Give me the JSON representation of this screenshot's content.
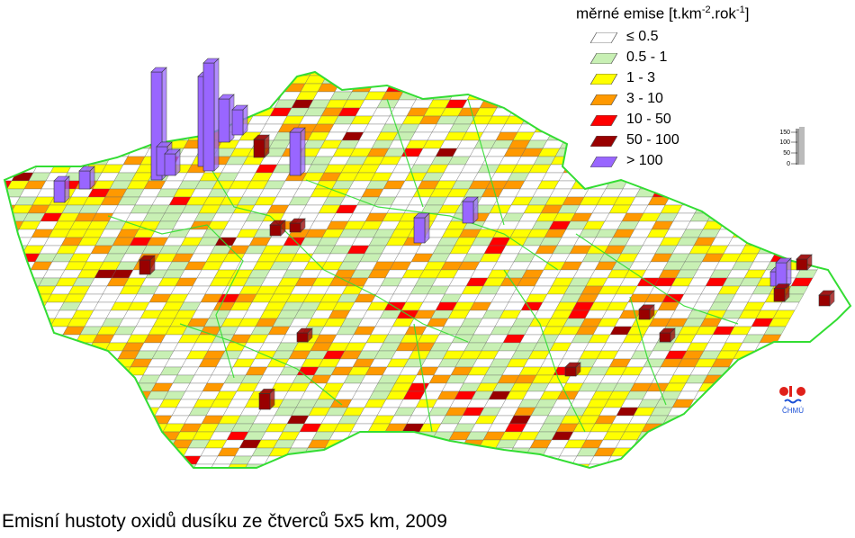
{
  "legend": {
    "title": "měrné emise [t.km",
    "title_exp1": "-2",
    "title_mid": ".rok",
    "title_exp2": "-1",
    "title_end": "]",
    "items": [
      {
        "label": "≤ 0.5",
        "color": "#ffffff"
      },
      {
        "label": "0.5 - 1",
        "color": "#c8f0b4"
      },
      {
        "label": "1 - 3",
        "color": "#ffff00"
      },
      {
        "label": "3 - 10",
        "color": "#ff9900"
      },
      {
        "label": "10 - 50",
        "color": "#ff0000"
      },
      {
        "label": "50 - 100",
        "color": "#990000"
      },
      {
        "label": "> 100",
        "color": "#9966ff"
      }
    ]
  },
  "scale_bar": {
    "ticks": [
      "150",
      "100",
      "50",
      "0"
    ]
  },
  "logo": {
    "text": "ČHMÚ"
  },
  "caption": "Emisní hustoty oxidů dusíku ze čtverců 5x5 km, 2009",
  "map": {
    "border_color": "#33dd33",
    "bars": [
      {
        "value": 150,
        "cls": 6
      },
      {
        "value": 125,
        "cls": 6
      },
      {
        "value": 150,
        "cls": 6
      },
      {
        "value": 60,
        "cls": 6
      },
      {
        "value": 35,
        "cls": 6
      },
      {
        "value": 40,
        "cls": 6
      },
      {
        "value": 30,
        "cls": 6
      },
      {
        "value": 25,
        "cls": 6
      },
      {
        "value": 60,
        "cls": 6
      },
      {
        "value": 35,
        "cls": 6
      },
      {
        "value": 30,
        "cls": 6
      },
      {
        "value": 20,
        "cls": 6
      },
      {
        "value": 35,
        "cls": 6
      },
      {
        "value": 30,
        "cls": 6
      },
      {
        "value": 20,
        "cls": 5
      },
      {
        "value": 22,
        "cls": 5
      },
      {
        "value": 15,
        "cls": 5
      },
      {
        "value": 15,
        "cls": 5
      },
      {
        "value": 18,
        "cls": 5
      },
      {
        "value": 25,
        "cls": 5
      },
      {
        "value": 15,
        "cls": 5
      },
      {
        "value": 12,
        "cls": 5
      },
      {
        "value": 14,
        "cls": 5
      },
      {
        "value": 12,
        "cls": 5
      },
      {
        "value": 10,
        "cls": 5
      },
      {
        "value": 10,
        "cls": 5
      }
    ]
  }
}
